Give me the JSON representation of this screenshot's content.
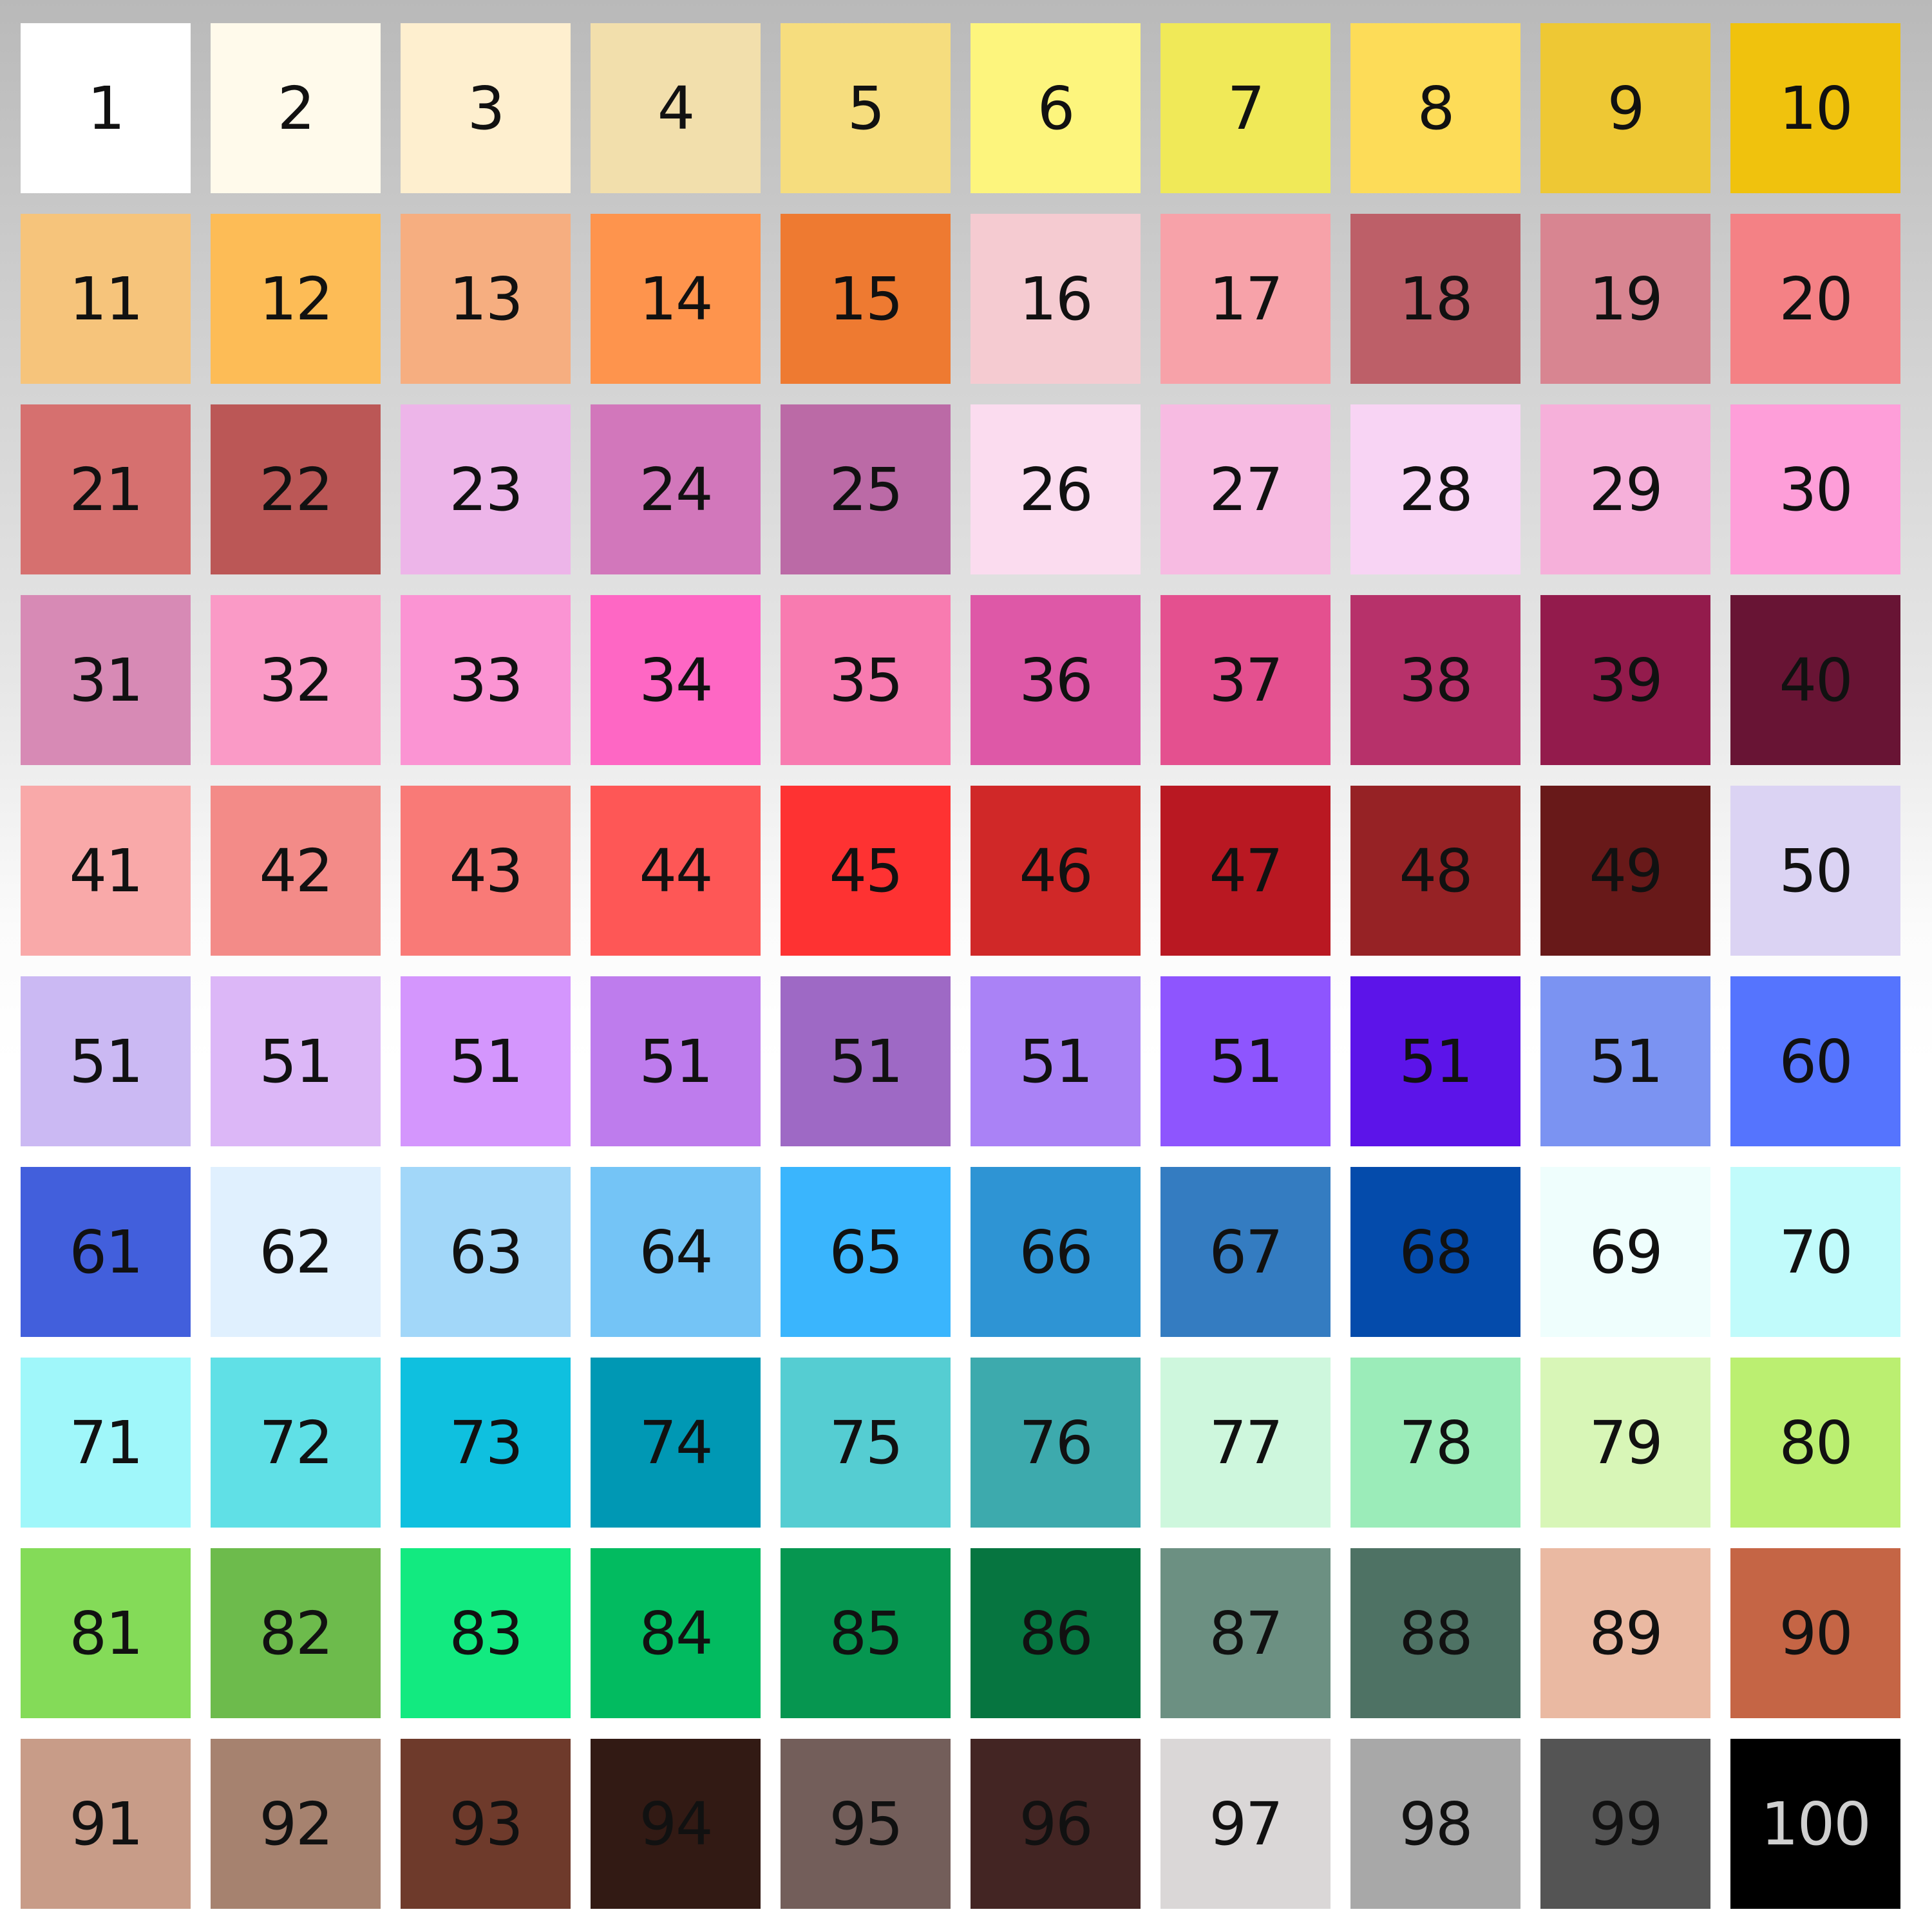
{
  "swatches": [
    {
      "label": "1",
      "color": "#ffffff"
    },
    {
      "label": "2",
      "color": "#fffaeb"
    },
    {
      "label": "3",
      "color": "#feefcf"
    },
    {
      "label": "4",
      "color": "#f2dfac"
    },
    {
      "label": "5",
      "color": "#f6dd7e"
    },
    {
      "label": "6",
      "color": "#fdf57d"
    },
    {
      "label": "7",
      "color": "#f0e958"
    },
    {
      "label": "8",
      "color": "#fddc58"
    },
    {
      "label": "9",
      "color": "#eec834"
    },
    {
      "label": "10",
      "color": "#f0c20d"
    },
    {
      "label": "11",
      "color": "#f6c47b"
    },
    {
      "label": "12",
      "color": "#fdbc56"
    },
    {
      "label": "13",
      "color": "#f6ae80"
    },
    {
      "label": "14",
      "color": "#fe944d"
    },
    {
      "label": "15",
      "color": "#ee7a31"
    },
    {
      "label": "16",
      "color": "#f5cbd1"
    },
    {
      "label": "17",
      "color": "#f7a2a9"
    },
    {
      "label": "18",
      "color": "#bd5f68"
    },
    {
      "label": "19",
      "color": "#d88591"
    },
    {
      "label": "20",
      "color": "#f48185"
    },
    {
      "label": "21",
      "color": "#d6706f"
    },
    {
      "label": "22",
      "color": "#bb5756"
    },
    {
      "label": "23",
      "color": "#edb5e9"
    },
    {
      "label": "24",
      "color": "#d277bb"
    },
    {
      "label": "25",
      "color": "#bb6aa6"
    },
    {
      "label": "26",
      "color": "#fbdcef"
    },
    {
      "label": "27",
      "color": "#f7bbe2"
    },
    {
      "label": "28",
      "color": "#f8d4f4"
    },
    {
      "label": "29",
      "color": "#f6b0da"
    },
    {
      "label": "30",
      "color": "#fe9ed9"
    },
    {
      "label": "31",
      "color": "#d78ab5"
    },
    {
      "label": "32",
      "color": "#fa9ac6"
    },
    {
      "label": "33",
      "color": "#fb94d3"
    },
    {
      "label": "34",
      "color": "#fe67c4"
    },
    {
      "label": "35",
      "color": "#f87bb0"
    },
    {
      "label": "36",
      "color": "#de58a7"
    },
    {
      "label": "37",
      "color": "#e4508f"
    },
    {
      "label": "38",
      "color": "#b7316a"
    },
    {
      "label": "39",
      "color": "#931b4c"
    },
    {
      "label": "40",
      "color": "#681434"
    },
    {
      "label": "41",
      "color": "#f9a9a9"
    },
    {
      "label": "42",
      "color": "#f38b88"
    },
    {
      "label": "43",
      "color": "#f97a77"
    },
    {
      "label": "44",
      "color": "#fe5756"
    },
    {
      "label": "45",
      "color": "#fe3232"
    },
    {
      "label": "46",
      "color": "#d02828"
    },
    {
      "label": "47",
      "color": "#b91822"
    },
    {
      "label": "48",
      "color": "#962225"
    },
    {
      "label": "49",
      "color": "#681919"
    },
    {
      "label": "50",
      "color": "#dbd3f3"
    },
    {
      "label": "51",
      "color": "#cbb9f3"
    },
    {
      "label": "51",
      "color": "#dcb7f7"
    },
    {
      "label": "51",
      "color": "#d496fd"
    },
    {
      "label": "51",
      "color": "#be7ced"
    },
    {
      "label": "51",
      "color": "#9e69c5"
    },
    {
      "label": "51",
      "color": "#aa82f6"
    },
    {
      "label": "51",
      "color": "#8e55fe"
    },
    {
      "label": "51",
      "color": "#5c14e9"
    },
    {
      "label": "51",
      "color": "#7b93f2"
    },
    {
      "label": "60",
      "color": "#5574fe"
    },
    {
      "label": "61",
      "color": "#425fdc"
    },
    {
      "label": "62",
      "color": "#e0f0fe"
    },
    {
      "label": "63",
      "color": "#a2d7f9"
    },
    {
      "label": "64",
      "color": "#74c4f6"
    },
    {
      "label": "65",
      "color": "#3ab5fd"
    },
    {
      "label": "66",
      "color": "#2e94d4"
    },
    {
      "label": "67",
      "color": "#347cc1"
    },
    {
      "label": "68",
      "color": "#044bab"
    },
    {
      "label": "69",
      "color": "#effefd"
    },
    {
      "label": "70",
      "color": "#c1fbfb"
    },
    {
      "label": "71",
      "color": "#a0f7fa"
    },
    {
      "label": "72",
      "color": "#60e0e6"
    },
    {
      "label": "73",
      "color": "#0fc0df"
    },
    {
      "label": "74",
      "color": "#0098b4"
    },
    {
      "label": "75",
      "color": "#55cdd2"
    },
    {
      "label": "76",
      "color": "#3daaad"
    },
    {
      "label": "77",
      "color": "#cef7dd"
    },
    {
      "label": "78",
      "color": "#9becb9"
    },
    {
      "label": "79",
      "color": "#d8f6b7"
    },
    {
      "label": "80",
      "color": "#bbef71"
    },
    {
      "label": "81",
      "color": "#84db58"
    },
    {
      "label": "82",
      "color": "#6dbb4c"
    },
    {
      "label": "83",
      "color": "#12ea80"
    },
    {
      "label": "84",
      "color": "#02bb60"
    },
    {
      "label": "85",
      "color": "#069650"
    },
    {
      "label": "86",
      "color": "#067540"
    },
    {
      "label": "87",
      "color": "#6c9082"
    },
    {
      "label": "88",
      "color": "#4e7264"
    },
    {
      "label": "89",
      "color": "#eab9a2"
    },
    {
      "label": "90",
      "color": "#c56545"
    },
    {
      "label": "91",
      "color": "#c89c88"
    },
    {
      "label": "92",
      "color": "#a6826f"
    },
    {
      "label": "93",
      "color": "#6e3a2b"
    },
    {
      "label": "94",
      "color": "#321a14"
    },
    {
      "label": "95",
      "color": "#735e5a"
    },
    {
      "label": "96",
      "color": "#432523"
    },
    {
      "label": "97",
      "color": "#dad7d7"
    },
    {
      "label": "98",
      "color": "#a8a8a8"
    },
    {
      "label": "99",
      "color": "#545454"
    },
    {
      "label": "100",
      "color": "#000000",
      "text_color": "#cfcfcf"
    }
  ]
}
